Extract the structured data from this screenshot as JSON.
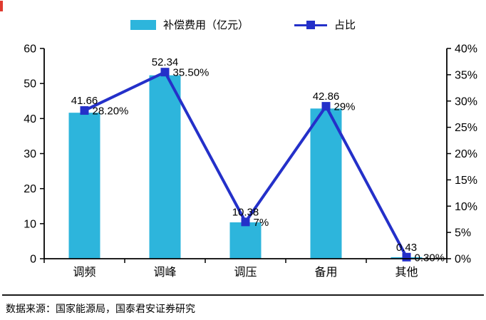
{
  "chart_data": {
    "type": "bar",
    "subtype": "bar+line combo, dual axis",
    "categories": [
      "调频",
      "调峰",
      "调压",
      "备用",
      "其他"
    ],
    "series": [
      {
        "name": "补偿费用（亿元）",
        "type": "bar",
        "axis": "left",
        "color": "#2db5dc",
        "values": [
          41.66,
          52.34,
          10.38,
          42.86,
          0.43
        ],
        "labels": [
          "41.66",
          "52.34",
          "10.38",
          "42.86",
          "0.43"
        ]
      },
      {
        "name": "占比",
        "type": "line",
        "axis": "right",
        "color": "#2430c9",
        "marker": "square",
        "values": [
          28.2,
          35.5,
          7,
          29,
          0.3
        ],
        "labels": [
          "28.20%",
          "35.50%",
          "7%",
          "29%",
          "0.30%"
        ]
      }
    ],
    "left_axis": {
      "min": 0,
      "max": 60,
      "step": 10,
      "ticks": [
        "0",
        "10",
        "20",
        "30",
        "40",
        "50",
        "60"
      ]
    },
    "right_axis": {
      "min": 0,
      "max": 40,
      "step": 5,
      "ticks": [
        "0%",
        "5%",
        "10%",
        "15%",
        "20%",
        "25%",
        "30%",
        "35%",
        "40%"
      ]
    },
    "grid": false,
    "legend_position": "top-center",
    "title": ""
  },
  "footer": {
    "source_text": "数据来源：国家能源局，国泰君安证券研究"
  },
  "decor": {
    "red_mark_color": "#e03a2f"
  }
}
